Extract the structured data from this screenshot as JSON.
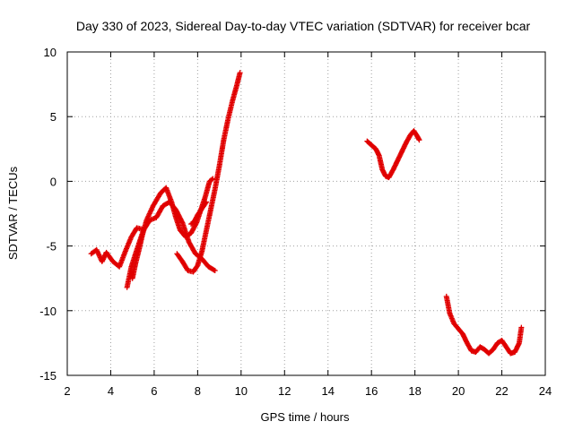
{
  "chart_data": {
    "type": "scatter",
    "title": "Day 330 of 2023, Sidereal Day-to-day VTEC variation (SDTVAR) for receiver bcar",
    "xlabel": "GPS time / hours",
    "ylabel": "SDTVAR / TECUs",
    "xlim": [
      2,
      24
    ],
    "ylim": [
      -15,
      10
    ],
    "xticks": [
      "2",
      "4",
      "6",
      "8",
      "10",
      "12",
      "14",
      "16",
      "18",
      "20",
      "22",
      "24"
    ],
    "yticks": [
      "10",
      "5",
      "0",
      "-5",
      "-10",
      "-15"
    ],
    "grid": true,
    "marker": "+",
    "color": "#e00000",
    "series": [
      {
        "name": "track-1",
        "x": [
          3.1,
          3.35,
          3.6,
          3.8,
          4.1,
          4.4,
          4.7,
          4.95,
          5.2,
          5.45
        ],
        "y": [
          -5.6,
          -5.3,
          -6.2,
          -5.5,
          -6.2,
          -6.6,
          -5.3,
          -4.3,
          -3.6,
          -3.7
        ]
      },
      {
        "name": "track-2",
        "x": [
          4.75,
          4.95,
          5.2,
          5.5,
          5.8,
          6.1,
          6.4,
          6.7,
          7.0,
          7.3,
          7.6,
          7.9,
          8.2,
          8.5,
          8.8
        ],
        "y": [
          -8.2,
          -6.6,
          -5.3,
          -3.8,
          -3.0,
          -2.8,
          -1.9,
          -1.6,
          -2.2,
          -3.2,
          -4.7,
          -5.6,
          -6.0,
          -6.6,
          -6.9
        ]
      },
      {
        "name": "track-3",
        "x": [
          5.0,
          5.15,
          5.3,
          5.45,
          5.65,
          5.95,
          6.3,
          6.55,
          6.8,
          7.0,
          7.2,
          7.45,
          7.7,
          7.95,
          8.15,
          8.35,
          8.55,
          8.7
        ],
        "y": [
          -7.5,
          -6.3,
          -5.3,
          -4.2,
          -3.0,
          -1.9,
          -0.9,
          -0.5,
          -1.6,
          -2.8,
          -3.8,
          -4.3,
          -4.0,
          -3.2,
          -2.2,
          -1.2,
          0.0,
          0.2
        ]
      },
      {
        "name": "track-4",
        "x": [
          7.05,
          7.3,
          7.55,
          7.8,
          8.0,
          8.2,
          8.4,
          8.6,
          8.8,
          9.0,
          9.2,
          9.4,
          9.6,
          9.8,
          9.95
        ],
        "y": [
          -5.6,
          -6.2,
          -6.9,
          -7.0,
          -6.5,
          -5.4,
          -3.8,
          -2.2,
          -0.6,
          1.2,
          3.2,
          4.8,
          6.2,
          7.4,
          8.4
        ]
      },
      {
        "name": "track-5",
        "x": [
          7.7,
          7.85,
          8.0,
          8.2,
          8.4
        ],
        "y": [
          -3.3,
          -3.1,
          -2.6,
          -2.1,
          -1.6
        ]
      },
      {
        "name": "track-6",
        "x": [
          15.8,
          16.0,
          16.2,
          16.35,
          16.5,
          16.65,
          16.8,
          17.0,
          17.2,
          17.4,
          17.6,
          17.8,
          17.95,
          18.1,
          18.2
        ],
        "y": [
          3.1,
          2.8,
          2.5,
          2.0,
          0.9,
          0.4,
          0.3,
          0.9,
          1.6,
          2.3,
          3.0,
          3.6,
          3.9,
          3.5,
          3.2
        ]
      },
      {
        "name": "track-7",
        "x": [
          19.45,
          19.6,
          19.8,
          20.0,
          20.2,
          20.4,
          20.6,
          20.8,
          21.0,
          21.2,
          21.4,
          21.6,
          21.8,
          22.0,
          22.2,
          22.4,
          22.6,
          22.8,
          22.9
        ],
        "y": [
          -8.9,
          -10.2,
          -11.0,
          -11.4,
          -11.8,
          -12.5,
          -13.1,
          -13.2,
          -12.8,
          -13.0,
          -13.3,
          -13.0,
          -12.5,
          -12.3,
          -12.8,
          -13.3,
          -13.2,
          -12.5,
          -11.3
        ]
      }
    ]
  }
}
